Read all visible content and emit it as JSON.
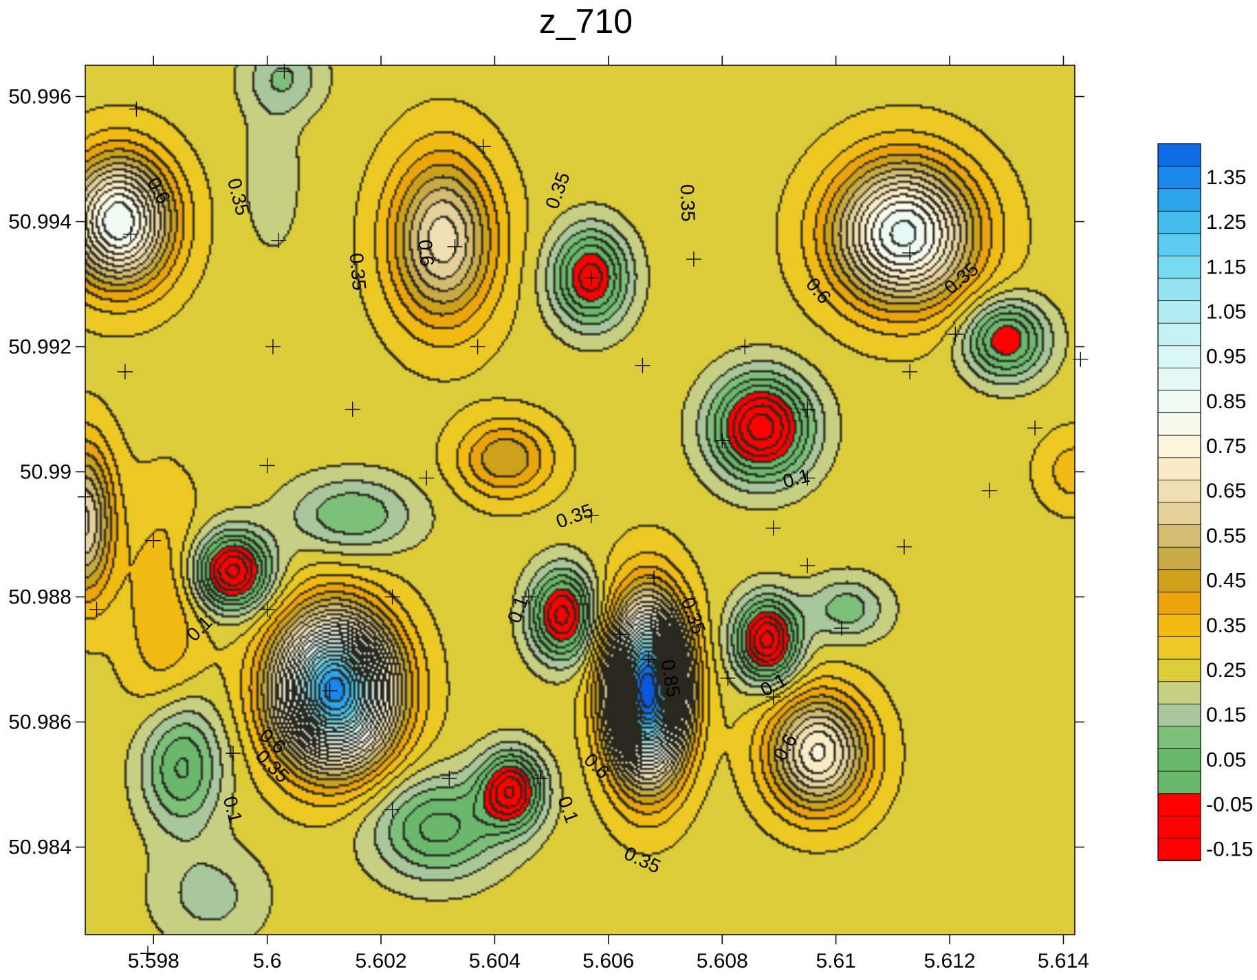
{
  "chart_data": {
    "type": "contour",
    "title": "z_710",
    "xlabel": "",
    "ylabel": "",
    "xlim": [
      5.5968,
      5.6142
    ],
    "ylim": [
      50.9826,
      50.9965
    ],
    "x_ticks": [
      "5.598",
      "5.6",
      "5.602",
      "5.604",
      "5.606",
      "5.608",
      "5.61",
      "5.612",
      "5.614"
    ],
    "y_ticks": [
      "50.996",
      "50.994",
      "50.992",
      "50.99",
      "50.988",
      "50.986",
      "50.984"
    ],
    "x_tick_values": [
      5.598,
      5.6,
      5.602,
      5.604,
      5.606,
      5.608,
      5.61,
      5.612,
      5.614
    ],
    "y_tick_values": [
      50.996,
      50.994,
      50.992,
      50.99,
      50.988,
      50.986,
      50.984
    ],
    "colorbar": {
      "labels": [
        "1.35",
        "1.25",
        "1.15",
        "1.05",
        "0.95",
        "0.85",
        "0.75",
        "0.65",
        "0.55",
        "0.45",
        "0.35",
        "0.25",
        "0.15",
        "0.05",
        "-0.05",
        "-0.15"
      ],
      "label_values": [
        1.35,
        1.25,
        1.15,
        1.05,
        0.95,
        0.85,
        0.75,
        0.65,
        0.55,
        0.45,
        0.35,
        0.25,
        0.15,
        0.05,
        -0.05,
        -0.15
      ],
      "levels_min": -0.15,
      "levels_max": 1.45,
      "levels_step": 0.05
    },
    "contour_labels": [
      {
        "text": "0.6",
        "x": 5.5981,
        "y": 50.9945,
        "rot": 60
      },
      {
        "text": "0.35",
        "x": 5.5995,
        "y": 50.9944,
        "rot": 75
      },
      {
        "text": "0.6",
        "x": 5.6028,
        "y": 50.9935,
        "rot": 85
      },
      {
        "text": "0.35",
        "x": 5.6016,
        "y": 50.9932,
        "rot": 85
      },
      {
        "text": "0.35",
        "x": 5.6051,
        "y": 50.9945,
        "rot": -70
      },
      {
        "text": "0.35",
        "x": 5.6074,
        "y": 50.9943,
        "rot": 88
      },
      {
        "text": "0.6",
        "x": 5.6097,
        "y": 50.9929,
        "rot": 50
      },
      {
        "text": "0.35",
        "x": 5.6122,
        "y": 50.9931,
        "rot": -40
      },
      {
        "text": "0.1",
        "x": 5.6093,
        "y": 50.9899,
        "rot": -15
      },
      {
        "text": "0.35",
        "x": 5.6054,
        "y": 50.9893,
        "rot": -20
      },
      {
        "text": "0.1",
        "x": 5.5988,
        "y": 50.9875,
        "rot": -45
      },
      {
        "text": "0.1",
        "x": 5.6044,
        "y": 50.9878,
        "rot": -70
      },
      {
        "text": "0.35",
        "x": 5.6075,
        "y": 50.9877,
        "rot": 70
      },
      {
        "text": "0.85",
        "x": 5.6071,
        "y": 50.9867,
        "rot": 80
      },
      {
        "text": "0.1",
        "x": 5.6089,
        "y": 50.9866,
        "rot": -30
      },
      {
        "text": "0.6",
        "x": 5.6001,
        "y": 50.9857,
        "rot": 40
      },
      {
        "text": "0.35",
        "x": 5.6001,
        "y": 50.9853,
        "rot": 45
      },
      {
        "text": "0.1",
        "x": 5.5994,
        "y": 50.9846,
        "rot": 75
      },
      {
        "text": "0.6",
        "x": 5.6058,
        "y": 50.9853,
        "rot": 45
      },
      {
        "text": "0.1",
        "x": 5.6053,
        "y": 50.9846,
        "rot": 70
      },
      {
        "text": "0.6",
        "x": 5.6091,
        "y": 50.9856,
        "rot": -60
      },
      {
        "text": "0.35",
        "x": 5.6066,
        "y": 50.9838,
        "rot": 25
      }
    ],
    "sample_points": [
      [
        5.5977,
        50.9958
      ],
      [
        5.6038,
        50.9952
      ],
      [
        5.6003,
        50.9964
      ],
      [
        5.5976,
        50.9938
      ],
      [
        5.6002,
        50.9937
      ],
      [
        5.6033,
        50.9936
      ],
      [
        5.6057,
        50.9931
      ],
      [
        5.6075,
        50.9934
      ],
      [
        5.6113,
        50.9935
      ],
      [
        5.6001,
        50.992
      ],
      [
        5.6037,
        50.992
      ],
      [
        5.5975,
        50.9916
      ],
      [
        5.6066,
        50.9917
      ],
      [
        5.6084,
        50.992
      ],
      [
        5.6121,
        50.9922
      ],
      [
        5.6113,
        50.9916
      ],
      [
        5.6143,
        50.9918
      ],
      [
        5.6015,
        50.991
      ],
      [
        5.6095,
        50.991
      ],
      [
        5.6135,
        50.9907
      ],
      [
        5.608,
        50.9905
      ],
      [
        5.6,
        50.9901
      ],
      [
        5.6028,
        50.9899
      ],
      [
        5.6095,
        50.9899
      ],
      [
        5.5968,
        50.9896
      ],
      [
        5.6127,
        50.9897
      ],
      [
        5.6057,
        50.9893
      ],
      [
        5.6089,
        50.9891
      ],
      [
        5.598,
        50.9889
      ],
      [
        5.6112,
        50.9888
      ],
      [
        5.6095,
        50.9885
      ],
      [
        5.6068,
        50.9883
      ],
      [
        5.597,
        50.9878
      ],
      [
        5.6,
        50.9878
      ],
      [
        5.6022,
        50.988
      ],
      [
        5.6046,
        50.988
      ],
      [
        5.6062,
        50.9874
      ],
      [
        5.6101,
        50.9875
      ],
      [
        5.6067,
        50.987
      ],
      [
        5.6081,
        50.9867
      ],
      [
        5.6011,
        50.9865
      ],
      [
        5.6089,
        50.9864
      ],
      [
        5.5994,
        50.9855
      ],
      [
        5.6032,
        50.9851
      ],
      [
        5.6048,
        50.9851
      ],
      [
        5.6022,
        50.9846
      ],
      [
        5.5979,
        50.9823
      ]
    ],
    "field": {
      "base": 0.28,
      "bumps": [
        {
          "x": 5.5974,
          "y": 50.994,
          "a": 0.62,
          "rx": 0.0009,
          "ry": 0.001
        },
        {
          "x": 5.5968,
          "y": 50.9892,
          "a": 0.38,
          "rx": 0.0005,
          "ry": 0.0012
        },
        {
          "x": 5.6031,
          "y": 50.9937,
          "a": 0.4,
          "rx": 0.0009,
          "ry": 0.0013
        },
        {
          "x": 5.6042,
          "y": 50.9902,
          "a": 0.22,
          "rx": 0.0008,
          "ry": 0.0006
        },
        {
          "x": 5.6003,
          "y": 50.9963,
          "a": -0.13,
          "rx": 0.0007,
          "ry": 0.0006
        },
        {
          "x": 5.6001,
          "y": 50.9947,
          "a": -0.07,
          "rx": 0.0005,
          "ry": 0.0012
        },
        {
          "x": 5.6057,
          "y": 50.9931,
          "a": -0.36,
          "rx": 0.00065,
          "ry": 0.00075
        },
        {
          "x": 5.6112,
          "y": 50.9938,
          "a": 0.64,
          "rx": 0.0012,
          "ry": 0.0011
        },
        {
          "x": 5.6087,
          "y": 50.9907,
          "a": -0.46,
          "rx": 0.00085,
          "ry": 0.0008
        },
        {
          "x": 5.613,
          "y": 50.9921,
          "a": -0.33,
          "rx": 0.0007,
          "ry": 0.0006
        },
        {
          "x": 5.6142,
          "y": 50.99,
          "a": 0.1,
          "rx": 0.0006,
          "ry": 0.0006
        },
        {
          "x": 5.5982,
          "y": 50.9878,
          "a": 0.12,
          "rx": 0.0007,
          "ry": 0.0018
        },
        {
          "x": 5.5994,
          "y": 50.9884,
          "a": -0.45,
          "rx": 0.00065,
          "ry": 0.0006
        },
        {
          "x": 5.6015,
          "y": 50.9893,
          "a": -0.18,
          "rx": 0.0011,
          "ry": 0.0006
        },
        {
          "x": 5.6012,
          "y": 50.9865,
          "a": 1.1,
          "rx": 0.001,
          "ry": 0.00115
        },
        {
          "x": 5.5985,
          "y": 50.9853,
          "a": -0.25,
          "rx": 0.0007,
          "ry": 0.001
        },
        {
          "x": 5.6052,
          "y": 50.9877,
          "a": -0.4,
          "rx": 0.00055,
          "ry": 0.0007
        },
        {
          "x": 5.6067,
          "y": 50.9865,
          "a": 1.22,
          "rx": 0.00065,
          "ry": 0.0013
        },
        {
          "x": 5.6088,
          "y": 50.9873,
          "a": -0.45,
          "rx": 0.00055,
          "ry": 0.00065
        },
        {
          "x": 5.6102,
          "y": 50.9878,
          "a": -0.16,
          "rx": 0.0007,
          "ry": 0.0005
        },
        {
          "x": 5.6097,
          "y": 50.9855,
          "a": 0.48,
          "rx": 0.00085,
          "ry": 0.0009
        },
        {
          "x": 5.6043,
          "y": 50.9849,
          "a": -0.4,
          "rx": 0.00055,
          "ry": 0.0006
        },
        {
          "x": 5.603,
          "y": 50.9843,
          "a": -0.25,
          "rx": 0.0011,
          "ry": 0.0008
        },
        {
          "x": 5.599,
          "y": 50.9832,
          "a": -0.1,
          "rx": 0.001,
          "ry": 0.0008
        }
      ]
    }
  }
}
